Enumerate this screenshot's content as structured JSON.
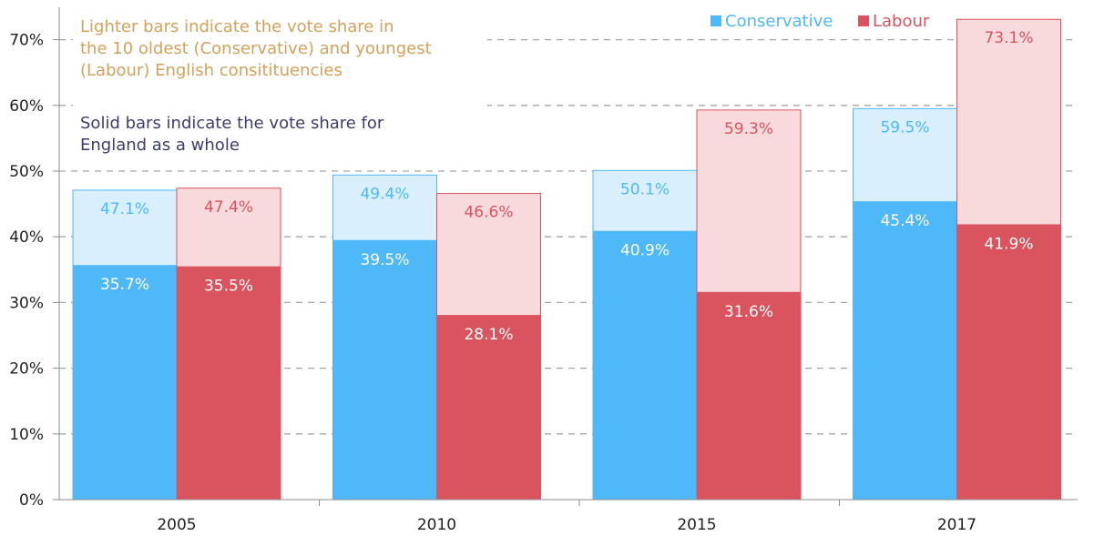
{
  "chart_data": {
    "type": "bar",
    "categories": [
      "2005",
      "2010",
      "2015",
      "2017"
    ],
    "series": [
      {
        "name": "Conservative",
        "england_values": [
          35.7,
          39.5,
          40.9,
          45.4
        ],
        "constituency_values": [
          47.1,
          49.4,
          50.1,
          59.5
        ],
        "england_labels": [
          "35.7%",
          "39.5%",
          "40.9%",
          "45.4%"
        ],
        "constituency_labels": [
          "47.1%",
          "49.4%",
          "50.1%",
          "59.5%"
        ],
        "color": "#4fb8f7",
        "light_color": "#d9effd",
        "label_color": "#4fb8f7"
      },
      {
        "name": "Labour",
        "england_values": [
          35.5,
          28.1,
          31.6,
          41.9
        ],
        "constituency_values": [
          47.4,
          46.6,
          59.3,
          73.1
        ],
        "england_labels": [
          "35.5%",
          "28.1%",
          "31.6%",
          "41.9%"
        ],
        "constituency_labels": [
          "47.4%",
          "46.6%",
          "59.3%",
          "73.1%"
        ],
        "color": "#d9545e",
        "light_color": "#f8d9dc",
        "label_color": "#d9545e"
      }
    ],
    "ylim": [
      0,
      75
    ],
    "yticks": [
      0,
      10,
      20,
      30,
      40,
      50,
      60,
      70
    ],
    "ytick_labels": [
      "0%",
      "10%",
      "20%",
      "30%",
      "40%",
      "50%",
      "60%",
      "70%"
    ],
    "grid": true,
    "legend": {
      "placement": "top-right",
      "items": [
        "Conservative",
        "Labour"
      ]
    },
    "annotations": {
      "lighter_bars_note": [
        "Lighter bars indicate the vote share in",
        "the 10 oldest (Conservative) and youngest",
        "(Labour) English consitituencies"
      ],
      "lighter_bars_color": "#d4a15c",
      "solid_bars_note": [
        "Solid bars indicate the vote share for",
        "England as a whole"
      ],
      "solid_bars_color": "#3c3c6e"
    }
  }
}
